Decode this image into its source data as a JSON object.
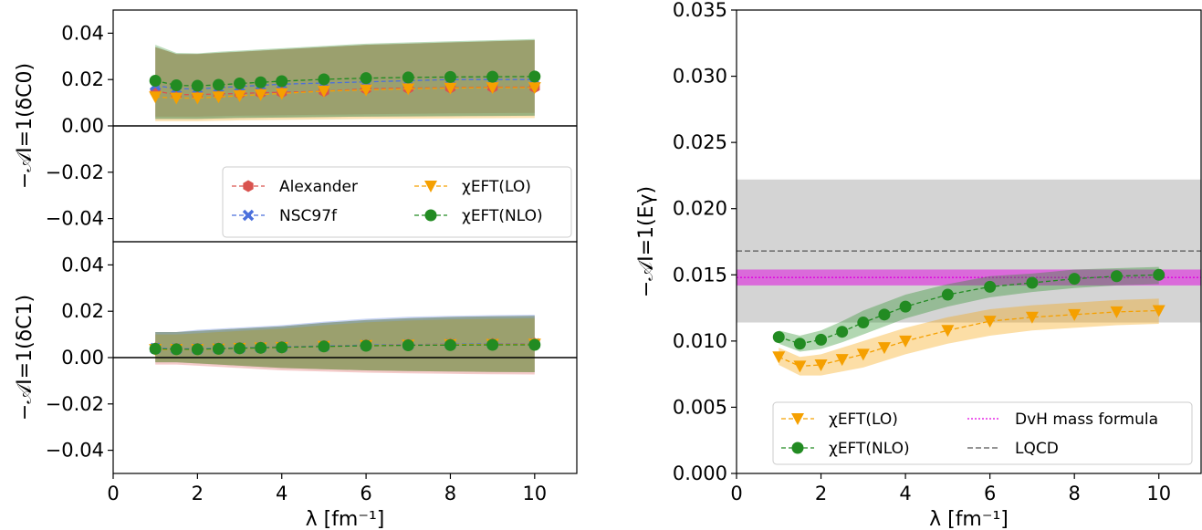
{
  "chart_data": [
    {
      "id": "c0",
      "type": "line",
      "ylabel": "−𝒜I=1(δC0)",
      "ylim": [
        -0.05,
        0.05
      ],
      "xlim": [
        0,
        11
      ],
      "yticks": [
        -0.04,
        -0.02,
        0.0,
        0.02,
        0.04
      ],
      "ytick_labels": [
        "−0.04",
        "−0.02",
        "0.00",
        "0.02",
        "0.04"
      ],
      "zero_line": true,
      "legend": "bottom-right",
      "x": [
        1,
        1.5,
        2,
        2.5,
        3,
        3.5,
        4,
        5,
        6,
        7,
        8,
        9,
        10
      ],
      "series": [
        {
          "name": "Alexander",
          "color": "#d9534f",
          "marker": "hexagon",
          "values": [
            0.015,
            0.0135,
            0.0135,
            0.0138,
            0.014,
            0.0143,
            0.0145,
            0.015,
            0.016,
            0.0163,
            0.0165,
            0.0167,
            0.0167
          ],
          "band_lo": [
            0.004,
            0.004,
            0.004,
            0.0042,
            0.0044,
            0.0045,
            0.0046,
            0.0048,
            0.005,
            0.0052,
            0.0054,
            0.0055,
            0.0056
          ],
          "band_hi": [
            0.034,
            0.031,
            0.031,
            0.0315,
            0.032,
            0.0325,
            0.033,
            0.034,
            0.035,
            0.0355,
            0.036,
            0.0365,
            0.037
          ]
        },
        {
          "name": "NSC97f",
          "color": "#4a6fdc",
          "marker": "x",
          "values": [
            0.0175,
            0.016,
            0.016,
            0.0165,
            0.017,
            0.0175,
            0.018,
            0.0185,
            0.019,
            0.0195,
            0.02,
            0.02,
            0.02
          ],
          "band_lo": [
            0.003,
            0.003,
            0.003,
            0.0032,
            0.0034,
            0.0035,
            0.0036,
            0.0038,
            0.004,
            0.0041,
            0.0042,
            0.0043,
            0.0044
          ],
          "band_hi": [
            0.034,
            0.031,
            0.031,
            0.0315,
            0.032,
            0.0325,
            0.033,
            0.034,
            0.035,
            0.0355,
            0.036,
            0.0365,
            0.037
          ]
        },
        {
          "name": "χEFT(LO)",
          "color": "#f5a000",
          "marker": "triangle-down",
          "values": [
            0.0125,
            0.012,
            0.012,
            0.0125,
            0.013,
            0.0135,
            0.014,
            0.015,
            0.0155,
            0.016,
            0.0163,
            0.0165,
            0.0165
          ],
          "band_lo": [
            0.002,
            0.002,
            0.002,
            0.0022,
            0.0024,
            0.0025,
            0.0026,
            0.0028,
            0.003,
            0.0031,
            0.0032,
            0.0033,
            0.0034
          ],
          "band_hi": [
            0.034,
            0.031,
            0.031,
            0.0315,
            0.032,
            0.0325,
            0.033,
            0.034,
            0.035,
            0.0355,
            0.036,
            0.0365,
            0.037
          ]
        },
        {
          "name": "χEFT(NLO)",
          "color": "#228B22",
          "marker": "circle",
          "values": [
            0.0195,
            0.0175,
            0.0173,
            0.0177,
            0.0183,
            0.0188,
            0.0193,
            0.0201,
            0.0206,
            0.0209,
            0.0211,
            0.0212,
            0.0213
          ],
          "band_lo": [
            0.003,
            0.003,
            0.003,
            0.0032,
            0.0034,
            0.0035,
            0.0036,
            0.0038,
            0.004,
            0.0041,
            0.0042,
            0.0043,
            0.0044
          ],
          "band_hi": [
            0.035,
            0.0315,
            0.0313,
            0.032,
            0.0325,
            0.033,
            0.0335,
            0.0345,
            0.0355,
            0.036,
            0.0365,
            0.037,
            0.0375
          ]
        }
      ]
    },
    {
      "id": "c1",
      "type": "line",
      "ylabel": "−𝒜I=1(δC1)",
      "ylim": [
        -0.05,
        0.05
      ],
      "xlim": [
        0,
        11
      ],
      "xlabel": "λ [fm⁻¹]",
      "xticks": [
        0,
        2,
        4,
        6,
        8,
        10
      ],
      "yticks": [
        -0.04,
        -0.02,
        0.0,
        0.02,
        0.04
      ],
      "ytick_labels": [
        "−0.04",
        "−0.02",
        "0.00",
        "0.02",
        "0.04"
      ],
      "zero_line": true,
      "x": [
        1,
        1.5,
        2,
        2.5,
        3,
        3.5,
        4,
        5,
        6,
        7,
        8,
        9,
        10
      ],
      "series": [
        {
          "name": "Alexander",
          "color": "#d9534f",
          "values": [
            0.004,
            0.0038,
            0.0038,
            0.004,
            0.0042,
            0.0044,
            0.0046,
            0.005,
            0.0054,
            0.0056,
            0.0058,
            0.0059,
            0.006
          ],
          "band_lo": [
            -0.003,
            -0.003,
            -0.0035,
            -0.004,
            -0.0045,
            -0.005,
            -0.0055,
            -0.006,
            -0.0065,
            -0.0068,
            -0.007,
            -0.0072,
            -0.0073
          ],
          "band_hi": [
            0.011,
            0.011,
            0.0115,
            0.012,
            0.0125,
            0.013,
            0.0135,
            0.015,
            0.0162,
            0.017,
            0.0175,
            0.0178,
            0.018
          ]
        },
        {
          "name": "NSC97f",
          "color": "#4a6fdc",
          "values": [
            0.004,
            0.0038,
            0.0038,
            0.004,
            0.0042,
            0.0044,
            0.0046,
            0.005,
            0.0054,
            0.0056,
            0.0058,
            0.0059,
            0.006
          ],
          "band_lo": [
            -0.002,
            -0.002,
            -0.0025,
            -0.003,
            -0.0035,
            -0.004,
            -0.0045,
            -0.005,
            -0.0055,
            -0.0058,
            -0.006,
            -0.0062,
            -0.0063
          ],
          "band_hi": [
            0.011,
            0.011,
            0.012,
            0.0125,
            0.013,
            0.0135,
            0.014,
            0.0155,
            0.0168,
            0.0176,
            0.018,
            0.0183,
            0.0185
          ]
        },
        {
          "name": "χEFT(LO)",
          "color": "#f5a000",
          "values": [
            0.0035,
            0.0035,
            0.0035,
            0.0037,
            0.004,
            0.0042,
            0.0044,
            0.0048,
            0.0052,
            0.0054,
            0.0056,
            0.0057,
            0.0058
          ],
          "band_lo": [
            -0.002,
            -0.002,
            -0.0025,
            -0.003,
            -0.0035,
            -0.004,
            -0.0045,
            -0.005,
            -0.0055,
            -0.0058,
            -0.006,
            -0.0062,
            -0.0063
          ],
          "band_hi": [
            0.01,
            0.01,
            0.0105,
            0.011,
            0.0115,
            0.012,
            0.0125,
            0.014,
            0.0152,
            0.016,
            0.0165,
            0.0168,
            0.017
          ]
        },
        {
          "name": "χEFT(NLO)",
          "color": "#228B22",
          "values": [
            0.0038,
            0.0036,
            0.0036,
            0.0038,
            0.004,
            0.0042,
            0.0044,
            0.0048,
            0.0051,
            0.0053,
            0.0054,
            0.0055,
            0.0055
          ],
          "band_lo": [
            -0.002,
            -0.002,
            -0.0025,
            -0.003,
            -0.0035,
            -0.004,
            -0.0045,
            -0.005,
            -0.0055,
            -0.0058,
            -0.006,
            -0.0062,
            -0.0063
          ],
          "band_hi": [
            0.011,
            0.011,
            0.0115,
            0.012,
            0.0125,
            0.013,
            0.0135,
            0.015,
            0.0162,
            0.017,
            0.0175,
            0.0178,
            0.018
          ]
        }
      ]
    },
    {
      "id": "ey",
      "type": "line",
      "ylabel": "−𝒜I=1(Eγ)",
      "xlabel": "λ [fm⁻¹]",
      "ylim": [
        0,
        0.035
      ],
      "xlim": [
        0,
        11
      ],
      "xticks": [
        0,
        2,
        4,
        6,
        8,
        10
      ],
      "yticks": [
        0,
        0.005,
        0.01,
        0.015,
        0.02,
        0.025,
        0.03,
        0.035
      ],
      "ytick_labels": [
        "0.000",
        "0.005",
        "0.010",
        "0.015",
        "0.020",
        "0.025",
        "0.030",
        "0.035"
      ],
      "legend": "bottom-right",
      "x": [
        1,
        1.5,
        2,
        2.5,
        3,
        3.5,
        4,
        5,
        6,
        7,
        8,
        9,
        10
      ],
      "series": [
        {
          "name": "χEFT(LO)",
          "color": "#f5a000",
          "marker": "triangle-down",
          "values": [
            0.0088,
            0.0081,
            0.0082,
            0.0086,
            0.009,
            0.0095,
            0.01,
            0.0108,
            0.0115,
            0.0118,
            0.012,
            0.0122,
            0.0123
          ],
          "band_lo": [
            0.0082,
            0.0074,
            0.0074,
            0.0077,
            0.008,
            0.0085,
            0.009,
            0.0098,
            0.0104,
            0.0108,
            0.011,
            0.0112,
            0.0113
          ],
          "band_hi": [
            0.0095,
            0.0088,
            0.009,
            0.0095,
            0.01,
            0.0105,
            0.011,
            0.0118,
            0.0124,
            0.0127,
            0.0129,
            0.0131,
            0.0132
          ]
        },
        {
          "name": "χEFT(NLO)",
          "color": "#228B22",
          "marker": "circle",
          "values": [
            0.0103,
            0.0098,
            0.0101,
            0.0107,
            0.0114,
            0.012,
            0.0126,
            0.0135,
            0.0141,
            0.0144,
            0.0147,
            0.0149,
            0.015
          ],
          "band_lo": [
            0.0098,
            0.0092,
            0.0094,
            0.0099,
            0.0105,
            0.0111,
            0.0117,
            0.0126,
            0.0133,
            0.0137,
            0.014,
            0.0142,
            0.0143
          ],
          "band_hi": [
            0.0108,
            0.0104,
            0.0108,
            0.0115,
            0.0123,
            0.0129,
            0.0135,
            0.0143,
            0.0149,
            0.0151,
            0.0154,
            0.0155,
            0.0156
          ]
        }
      ],
      "hbands": [
        {
          "name": "LQCD",
          "color": "#999999",
          "center": 0.0168,
          "lo": 0.0114,
          "hi": 0.0222,
          "style": "dashed"
        },
        {
          "name": "DvH mass formula",
          "color": "#e000e0",
          "center": 0.0148,
          "lo": 0.0142,
          "hi": 0.0154,
          "style": "dotted"
        }
      ]
    }
  ],
  "legend_top": [
    "Alexander",
    "NSC97f",
    "χEFT(LO)",
    "χEFT(NLO)"
  ],
  "legend_right": [
    "χEFT(LO)",
    "χEFT(NLO)",
    "DvH mass formula",
    "LQCD"
  ]
}
